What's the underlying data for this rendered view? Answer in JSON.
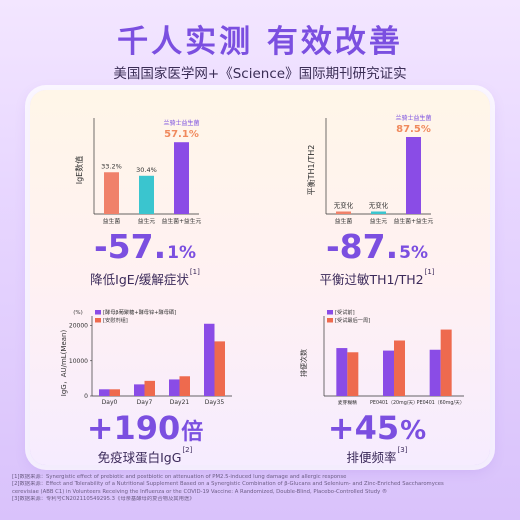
{
  "title": "千人实测 有效改善",
  "subtitle": "美国国家医学网+《Science》国际期刊研究证实",
  "panels": [
    {
      "big_number": "-57.",
      "big_unit": "1%",
      "caption": "降低IgE/缓解症状",
      "caption_ref": "[1]"
    },
    {
      "big_number": "-87.",
      "big_unit": "5%",
      "caption": "平衡过敏TH1/TH2",
      "caption_ref": "[1]"
    },
    {
      "big_number": "+190",
      "big_unit": "倍",
      "caption": "免疫球蛋白IgG",
      "caption_ref": "[2]"
    },
    {
      "big_number": "+45",
      "big_unit": "%",
      "caption": "排便频率",
      "caption_ref": "[3]"
    }
  ],
  "chart_data": [
    {
      "type": "bar",
      "ylabel": "IgE数值",
      "categories": [
        "益生菌",
        "益生元",
        "益生菌+益生元"
      ],
      "values": [
        33.2,
        30.4,
        57.1
      ],
      "value_labels": [
        "33.2%",
        "30.4%",
        "57.1%"
      ],
      "colors": [
        "#f0816a",
        "#3ac5cf",
        "#8a4ce6"
      ],
      "annotation": "兰骑士益生菌",
      "highlight_index": 2,
      "ylim": [
        0,
        70
      ],
      "grid": false
    },
    {
      "type": "bar",
      "ylabel": "平衡TH1/TH2",
      "categories": [
        "益生菌",
        "益生元",
        "益生菌+益生元"
      ],
      "values": [
        0,
        0,
        87.5
      ],
      "value_labels": [
        "无变化",
        "无变化",
        "87.5%"
      ],
      "colors": [
        "#f0816a",
        "#3ac5cf",
        "#8a4ce6"
      ],
      "annotation": "兰骑士益生菌",
      "highlight_index": 2,
      "ylim": [
        0,
        100
      ],
      "grid": false
    },
    {
      "type": "bar",
      "unit_label": "(%)",
      "ylabel": "IgG，AU/mL(Mean)",
      "categories": [
        "Day0",
        "Day7",
        "Day21",
        "Day35"
      ],
      "yticks": [
        0,
        10000,
        20000
      ],
      "ylim": [
        0,
        21000
      ],
      "series": [
        {
          "name": "[酵母β葡聚糖+酵母锌+酵母硒]",
          "color": "#8a4ce6",
          "values": [
            1900,
            3300,
            4700,
            20500
          ]
        },
        {
          "name": "[安慰剂组]",
          "color": "#ee6a4e",
          "values": [
            1900,
            4300,
            5600,
            15500
          ]
        }
      ],
      "legend": "top-left",
      "grid": false
    },
    {
      "type": "bar",
      "ylabel": "排便次数",
      "categories": [
        "麦芽糊精",
        "PE0401（20mg/天）",
        "PE0401（60mg/天）"
      ],
      "ylim": [
        0,
        4.4
      ],
      "series": [
        {
          "name": "[受试前]",
          "color": "#8a4ce6",
          "values": [
            2.85,
            2.7,
            2.75
          ]
        },
        {
          "name": "[受试最后一周]",
          "color": "#ee6a4e",
          "values": [
            2.6,
            3.3,
            3.95
          ]
        }
      ],
      "legend": "top-left",
      "grid": false
    }
  ],
  "footnotes": [
    "[1]数据来源：Synergistic effect of prebiotic and postbiotic on attenuation of PM2.5-induced lung damage and allergic response",
    "[2]数据来源：Effect and Tolerability of a Nutritional Supplement Based on a Synergistic Combination of β-Glucans and Selenium- and Zinc-Enriched Saccharomyces",
    "cerevisiae (ABB C1) in Volunteers Receiving the Influenza or the COVID-19 Vaccine: A Randomized, Double-Blind, Placebo-Controlled Study ®",
    "[3]数据来源：专利号CN202110549295.3《母亲基酵母的复合物及其用途》"
  ]
}
